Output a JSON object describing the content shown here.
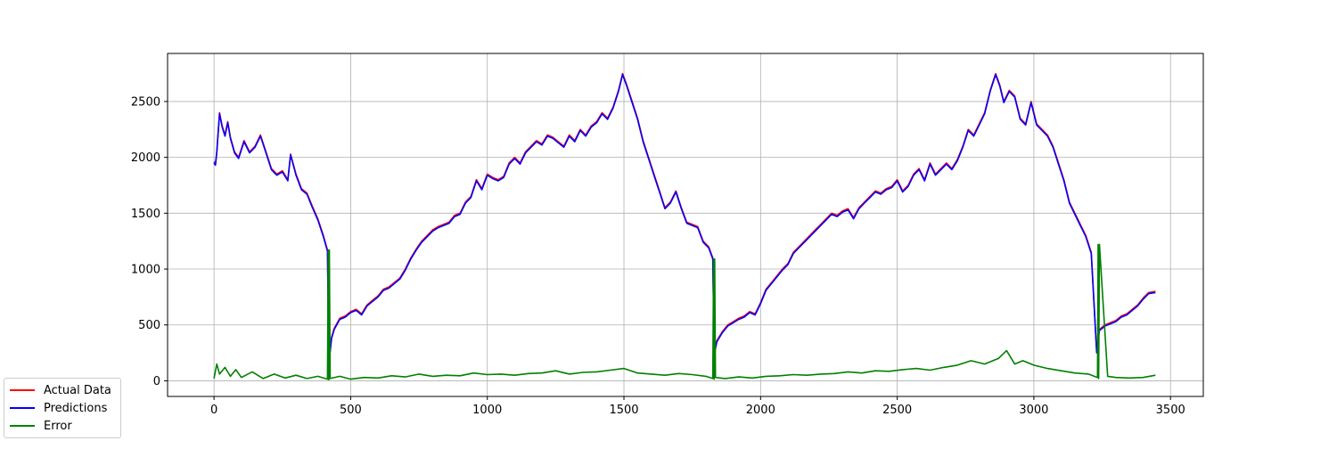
{
  "chart_data": {
    "type": "line",
    "title": "",
    "xlabel": "",
    "ylabel": "",
    "xlim": [
      -170,
      3620
    ],
    "ylim": [
      -140,
      2930
    ],
    "xticks": [
      0,
      500,
      1000,
      1500,
      2000,
      2500,
      3000,
      3500
    ],
    "yticks": [
      0,
      500,
      1000,
      1500,
      2000,
      2500
    ],
    "xtick_labels": [
      "0",
      "500",
      "1000",
      "1500",
      "2000",
      "2500",
      "3000",
      "3500"
    ],
    "ytick_labels": [
      "0",
      "500",
      "1000",
      "1500",
      "2000",
      "2500"
    ],
    "grid": true,
    "legend_position": "lower-left-outside",
    "series": [
      {
        "name": "Actual Data",
        "color": "#ff0000",
        "x": [
          0,
          5,
          10,
          20,
          30,
          40,
          50,
          60,
          75,
          90,
          110,
          130,
          150,
          170,
          190,
          210,
          230,
          250,
          270,
          280,
          300,
          320,
          340,
          360,
          380,
          400,
          415,
          420,
          430,
          440,
          460,
          480,
          500,
          520,
          540,
          560,
          580,
          600,
          620,
          640,
          660,
          680,
          700,
          720,
          740,
          760,
          780,
          800,
          820,
          840,
          860,
          880,
          900,
          920,
          940,
          960,
          980,
          1000,
          1020,
          1040,
          1060,
          1080,
          1100,
          1120,
          1140,
          1160,
          1180,
          1200,
          1220,
          1240,
          1260,
          1280,
          1300,
          1320,
          1340,
          1360,
          1380,
          1400,
          1420,
          1440,
          1460,
          1480,
          1495,
          1510,
          1530,
          1550,
          1570,
          1590,
          1610,
          1630,
          1650,
          1670,
          1690,
          1710,
          1730,
          1750,
          1770,
          1790,
          1810,
          1825,
          1830,
          1840,
          1860,
          1880,
          1900,
          1920,
          1940,
          1960,
          1980,
          2000,
          2020,
          2040,
          2060,
          2080,
          2100,
          2120,
          2140,
          2160,
          2180,
          2200,
          2220,
          2240,
          2260,
          2280,
          2300,
          2320,
          2340,
          2360,
          2380,
          2400,
          2420,
          2440,
          2460,
          2480,
          2500,
          2520,
          2540,
          2560,
          2580,
          2600,
          2620,
          2640,
          2660,
          2680,
          2700,
          2720,
          2740,
          2760,
          2780,
          2800,
          2820,
          2840,
          2860,
          2875,
          2890,
          2910,
          2930,
          2950,
          2970,
          2990,
          3010,
          3030,
          3050,
          3070,
          3090,
          3110,
          3130,
          3150,
          3170,
          3190,
          3210,
          3230,
          3235,
          3240,
          3260,
          3280,
          3300,
          3320,
          3340,
          3360,
          3380,
          3400,
          3420,
          3445
        ],
        "y": [
          1960,
          1940,
          2050,
          2400,
          2280,
          2200,
          2320,
          2180,
          2050,
          2000,
          2150,
          2050,
          2100,
          2200,
          2050,
          1900,
          1850,
          1880,
          1800,
          2030,
          1850,
          1720,
          1680,
          1560,
          1450,
          1300,
          1170,
          160,
          390,
          470,
          560,
          580,
          620,
          640,
          600,
          680,
          720,
          760,
          820,
          840,
          880,
          920,
          1000,
          1100,
          1180,
          1250,
          1300,
          1350,
          1380,
          1400,
          1420,
          1480,
          1500,
          1600,
          1650,
          1800,
          1720,
          1850,
          1820,
          1800,
          1830,
          1950,
          2000,
          1950,
          2050,
          2100,
          2150,
          2120,
          2200,
          2180,
          2140,
          2100,
          2200,
          2150,
          2250,
          2200,
          2280,
          2320,
          2400,
          2350,
          2450,
          2600,
          2750,
          2650,
          2500,
          2350,
          2150,
          2000,
          1850,
          1700,
          1550,
          1600,
          1700,
          1550,
          1420,
          1400,
          1380,
          1250,
          1200,
          1100,
          240,
          360,
          440,
          500,
          530,
          560,
          580,
          620,
          600,
          700,
          820,
          880,
          940,
          1000,
          1050,
          1150,
          1200,
          1250,
          1300,
          1350,
          1400,
          1450,
          1500,
          1480,
          1520,
          1540,
          1460,
          1550,
          1600,
          1650,
          1700,
          1680,
          1720,
          1740,
          1800,
          1700,
          1750,
          1850,
          1900,
          1800,
          1950,
          1850,
          1900,
          1950,
          1900,
          1980,
          2100,
          2250,
          2200,
          2300,
          2400,
          2600,
          2750,
          2650,
          2500,
          2600,
          2550,
          2350,
          2300,
          2500,
          2300,
          2250,
          2200,
          2100,
          1950,
          1800,
          1600,
          1500,
          1400,
          1300,
          1150,
          260,
          380,
          460,
          500,
          520,
          540,
          580,
          600,
          640,
          680,
          740,
          790,
          800
        ]
      },
      {
        "name": "Predictions",
        "color": "#0000ff",
        "x": [
          0,
          5,
          10,
          20,
          30,
          40,
          50,
          60,
          75,
          90,
          110,
          130,
          150,
          170,
          190,
          210,
          230,
          250,
          270,
          280,
          300,
          320,
          340,
          360,
          380,
          400,
          415,
          420,
          430,
          440,
          460,
          480,
          500,
          520,
          540,
          560,
          580,
          600,
          620,
          640,
          660,
          680,
          700,
          720,
          740,
          760,
          780,
          800,
          820,
          840,
          860,
          880,
          900,
          920,
          940,
          960,
          980,
          1000,
          1020,
          1040,
          1060,
          1080,
          1100,
          1120,
          1140,
          1160,
          1180,
          1200,
          1220,
          1240,
          1260,
          1280,
          1300,
          1320,
          1340,
          1360,
          1380,
          1400,
          1420,
          1440,
          1460,
          1480,
          1495,
          1510,
          1530,
          1550,
          1570,
          1590,
          1610,
          1630,
          1650,
          1670,
          1690,
          1710,
          1730,
          1750,
          1770,
          1790,
          1810,
          1825,
          1830,
          1840,
          1860,
          1880,
          1900,
          1920,
          1940,
          1960,
          1980,
          2000,
          2020,
          2040,
          2060,
          2080,
          2100,
          2120,
          2140,
          2160,
          2180,
          2200,
          2220,
          2240,
          2260,
          2280,
          2300,
          2320,
          2340,
          2360,
          2380,
          2400,
          2420,
          2440,
          2460,
          2480,
          2500,
          2520,
          2540,
          2560,
          2580,
          2600,
          2620,
          2640,
          2660,
          2680,
          2700,
          2720,
          2740,
          2760,
          2780,
          2800,
          2820,
          2840,
          2860,
          2875,
          2890,
          2910,
          2930,
          2950,
          2970,
          2990,
          3010,
          3030,
          3050,
          3070,
          3090,
          3110,
          3130,
          3150,
          3170,
          3190,
          3210,
          3230,
          3235,
          3240,
          3260,
          3280,
          3300,
          3320,
          3340,
          3360,
          3380,
          3400,
          3420,
          3445
        ],
        "y": [
          1950,
          1930,
          2040,
          2390,
          2270,
          2190,
          2310,
          2170,
          2040,
          1990,
          2140,
          2040,
          2090,
          2190,
          2040,
          1890,
          1840,
          1870,
          1790,
          2020,
          1840,
          1710,
          1670,
          1550,
          1440,
          1290,
          1160,
          150,
          380,
          460,
          550,
          570,
          610,
          630,
          590,
          670,
          710,
          750,
          810,
          830,
          870,
          910,
          990,
          1090,
          1170,
          1240,
          1290,
          1340,
          1370,
          1390,
          1410,
          1470,
          1490,
          1590,
          1640,
          1790,
          1710,
          1840,
          1810,
          1790,
          1820,
          1940,
          1990,
          1940,
          2040,
          2090,
          2140,
          2110,
          2190,
          2170,
          2130,
          2090,
          2190,
          2140,
          2240,
          2190,
          2270,
          2310,
          2390,
          2340,
          2440,
          2590,
          2740,
          2640,
          2490,
          2340,
          2140,
          1990,
          1840,
          1690,
          1540,
          1590,
          1690,
          1540,
          1410,
          1390,
          1370,
          1240,
          1190,
          1090,
          230,
          350,
          430,
          490,
          520,
          550,
          570,
          610,
          590,
          690,
          810,
          870,
          930,
          990,
          1040,
          1140,
          1190,
          1240,
          1290,
          1340,
          1390,
          1440,
          1490,
          1470,
          1510,
          1530,
          1450,
          1540,
          1590,
          1640,
          1690,
          1670,
          1710,
          1730,
          1790,
          1690,
          1740,
          1840,
          1890,
          1790,
          1940,
          1840,
          1890,
          1940,
          1890,
          1970,
          2090,
          2240,
          2190,
          2290,
          2390,
          2590,
          2740,
          2640,
          2490,
          2590,
          2540,
          2340,
          2290,
          2490,
          2290,
          2240,
          2190,
          2090,
          1940,
          1790,
          1590,
          1490,
          1390,
          1290,
          1140,
          250,
          370,
          450,
          490,
          510,
          530,
          570,
          590,
          630,
          670,
          730,
          780,
          790
        ]
      },
      {
        "name": "Error",
        "color": "#008000",
        "note": "approximate envelope of absolute prediction error; spikes at segment boundaries",
        "x": [
          0,
          10,
          20,
          40,
          60,
          80,
          100,
          140,
          180,
          220,
          260,
          300,
          340,
          380,
          415,
          418,
          420,
          422,
          425,
          460,
          500,
          550,
          600,
          650,
          700,
          750,
          800,
          850,
          900,
          950,
          1000,
          1050,
          1100,
          1150,
          1200,
          1250,
          1300,
          1350,
          1400,
          1450,
          1500,
          1550,
          1600,
          1650,
          1700,
          1750,
          1800,
          1825,
          1828,
          1830,
          1832,
          1835,
          1870,
          1920,
          1970,
          2020,
          2070,
          2120,
          2170,
          2220,
          2270,
          2320,
          2370,
          2420,
          2470,
          2520,
          2570,
          2620,
          2670,
          2720,
          2770,
          2820,
          2870,
          2900,
          2930,
          2960,
          3000,
          3050,
          3100,
          3150,
          3200,
          3233,
          3235,
          3237,
          3240,
          3270,
          3300,
          3350,
          3400,
          3445
        ],
        "y": [
          20,
          150,
          60,
          120,
          40,
          100,
          30,
          80,
          20,
          60,
          25,
          50,
          20,
          40,
          15,
          1170,
          10,
          1170,
          20,
          40,
          15,
          30,
          25,
          45,
          35,
          60,
          40,
          50,
          45,
          70,
          55,
          60,
          50,
          65,
          70,
          90,
          60,
          75,
          80,
          95,
          110,
          70,
          60,
          50,
          65,
          55,
          40,
          20,
          1090,
          15,
          1090,
          30,
          20,
          35,
          25,
          40,
          45,
          55,
          50,
          60,
          65,
          80,
          70,
          90,
          85,
          100,
          110,
          95,
          120,
          140,
          180,
          150,
          200,
          270,
          150,
          180,
          140,
          110,
          90,
          70,
          60,
          30,
          1220,
          20,
          1220,
          40,
          30,
          25,
          30,
          50
        ]
      }
    ]
  }
}
